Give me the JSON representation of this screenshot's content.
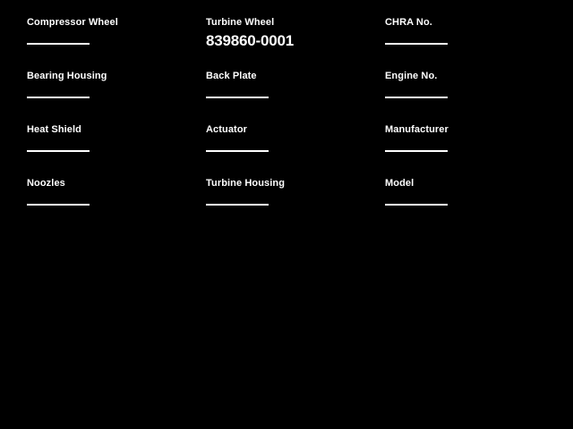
{
  "page": {
    "background_color": "#000000",
    "text_color": "#ffffff"
  },
  "form": {
    "fields": [
      {
        "label": "Compressor Wheel",
        "value": ""
      },
      {
        "label": "Turbine Wheel",
        "value": "839860-0001"
      },
      {
        "label": "CHRA No.",
        "value": ""
      },
      {
        "label": "Bearing Housing",
        "value": ""
      },
      {
        "label": "Back Plate",
        "value": ""
      },
      {
        "label": "Engine No.",
        "value": ""
      },
      {
        "label": "Heat Shield",
        "value": ""
      },
      {
        "label": "Actuator",
        "value": ""
      },
      {
        "label": "Manufacturer",
        "value": ""
      },
      {
        "label": "Noozles",
        "value": ""
      },
      {
        "label": "Turbine Housing",
        "value": ""
      },
      {
        "label": "Model",
        "value": ""
      }
    ]
  }
}
